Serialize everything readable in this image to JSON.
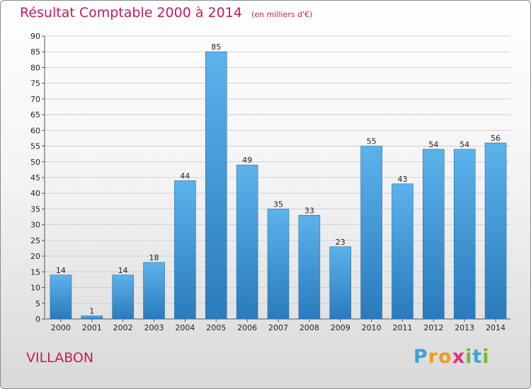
{
  "chart_data": {
    "type": "bar",
    "title": "Résultat Comptable 2000 à 2014",
    "unit_label": "(en milliers d'€)",
    "categories": [
      "2000",
      "2001",
      "2002",
      "2003",
      "2004",
      "2005",
      "2006",
      "2007",
      "2008",
      "2009",
      "2010",
      "2011",
      "2012",
      "2013",
      "2014"
    ],
    "values": [
      14,
      1,
      14,
      18,
      44,
      85,
      49,
      35,
      33,
      23,
      55,
      43,
      54,
      54,
      56
    ],
    "ylim": [
      0,
      90
    ],
    "yticks": [
      0,
      5,
      10,
      15,
      20,
      25,
      30,
      35,
      40,
      45,
      50,
      55,
      60,
      65,
      70,
      75,
      80,
      85,
      90
    ],
    "grid": true,
    "colors": {
      "bar_light": "#5cb2eb",
      "bar_dark": "#2a7bbd",
      "title": "#c8195a",
      "grid": "#cfcfcf"
    }
  },
  "commune": "VILLABON",
  "brand": {
    "letters": [
      "P",
      "r",
      "o",
      "x",
      "i",
      "t",
      "i"
    ],
    "colors": [
      "#3aa3df",
      "#f29a1d",
      "#f29a1d",
      "#e5307a",
      "#77b82b",
      "#3aa3df",
      "#77b82b"
    ]
  }
}
